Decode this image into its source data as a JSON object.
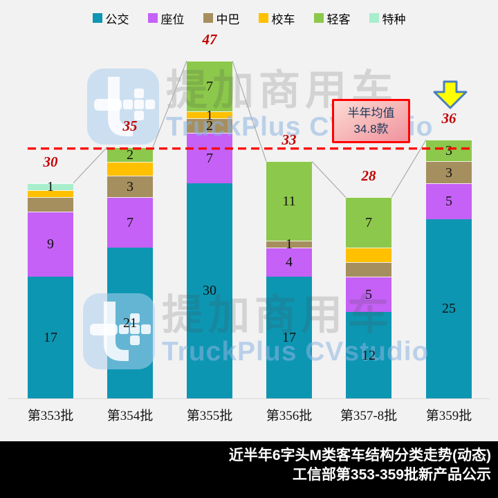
{
  "page": {
    "background": "#f2f2f2"
  },
  "watermark": {
    "cn": "提加商用车",
    "en": "TruckPlus CVstudio"
  },
  "chart_data": {
    "type": "bar",
    "stacked": true,
    "title": "近半年6字头M类客车结构分类走势(动态)",
    "subtitle": "工信部第353-359批新产品公示",
    "categories": [
      "第353批",
      "第354批",
      "第355批",
      "第356批",
      "第357-8批",
      "第359批"
    ],
    "series": [
      {
        "name": "公交",
        "color": "#0D96B2",
        "values": [
          17,
          21,
          30,
          17,
          12,
          25
        ],
        "labels": [
          "17",
          "21",
          "30",
          "17",
          "12",
          "25"
        ]
      },
      {
        "name": "座位",
        "color": "#C561F6",
        "values": [
          9,
          7,
          7,
          4,
          5,
          5
        ],
        "labels": [
          "9",
          "7",
          "7",
          "4",
          "5",
          "5"
        ]
      },
      {
        "name": "中巴",
        "color": "#A68F5E",
        "values": [
          2,
          3,
          2,
          1,
          2,
          3
        ],
        "labels": [
          "",
          "3",
          "2",
          "1",
          "",
          "3"
        ]
      },
      {
        "name": "校车",
        "color": "#FFC000",
        "values": [
          1,
          2,
          1,
          0,
          2,
          0
        ],
        "labels": [
          "",
          "",
          "1",
          "",
          "",
          ""
        ]
      },
      {
        "name": "轻客",
        "color": "#8CC84B",
        "values": [
          0,
          2,
          7,
          11,
          7,
          3
        ],
        "labels": [
          "",
          "2",
          "7",
          "11",
          "7",
          "3"
        ]
      },
      {
        "name": "特种",
        "color": "#A8EECD",
        "values": [
          1,
          0,
          0,
          0,
          0,
          0
        ],
        "labels": [
          "1",
          "",
          "",
          "",
          "",
          ""
        ]
      }
    ],
    "totals": [
      30,
      35,
      47,
      33,
      28,
      36
    ],
    "average_line": {
      "value": 34.8,
      "color": "#FF0000",
      "style": "dashed"
    },
    "ylim": [
      0,
      47
    ],
    "grid": false,
    "legend_position": "top",
    "highlight_arrow_category_index": 5,
    "colors": {
      "total_label": "#C00000",
      "connector_line": "#ABABAB",
      "arrow_fill": "#FFFF00",
      "arrow_stroke": "#4A7EBC"
    }
  },
  "average_box": {
    "line1": "半年均值",
    "line2": "34.8款"
  },
  "footer": {
    "line1": "近半年6字头M类客车结构分类走势(动态)",
    "line2": "工信部第353-359批新产品公示"
  }
}
